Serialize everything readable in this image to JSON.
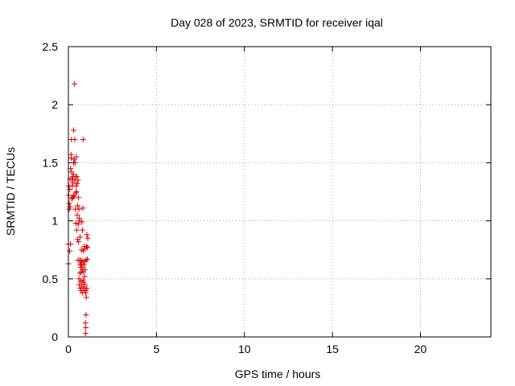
{
  "chart_data": {
    "type": "scatter",
    "title": "Day 028 of 2023, SRMTID for receiver iqal",
    "xlabel": "GPS time / hours",
    "ylabel": "SRMTID / TECUs",
    "xlim": [
      0,
      24
    ],
    "ylim": [
      0,
      2.5
    ],
    "xticks": [
      0,
      5,
      10,
      15,
      20
    ],
    "xtick_labels": [
      "0",
      "5",
      "10",
      "15",
      "20"
    ],
    "yticks": [
      0,
      0.5,
      1,
      1.5,
      2,
      2.5
    ],
    "ytick_labels": [
      "0",
      "0.5",
      "1",
      "1.5",
      "2",
      "2.5"
    ],
    "grid": true,
    "marker": "+",
    "series": [
      {
        "name": "SRMTID",
        "color": "#dd0000",
        "points": [
          [
            0.0,
            0.63
          ],
          [
            0.0,
            0.8
          ],
          [
            0.02,
            1.22
          ],
          [
            0.03,
            1.3
          ],
          [
            0.05,
            1.15
          ],
          [
            0.05,
            1.1
          ],
          [
            0.07,
            0.74
          ],
          [
            0.08,
            1.27
          ],
          [
            0.1,
            1.36
          ],
          [
            0.1,
            1.12
          ],
          [
            0.12,
            0.8
          ],
          [
            0.13,
            1.45
          ],
          [
            0.15,
            1.57
          ],
          [
            0.16,
            1.54
          ],
          [
            0.17,
            1.7
          ],
          [
            0.18,
            1.42
          ],
          [
            0.2,
            1.36
          ],
          [
            0.2,
            1.19
          ],
          [
            0.22,
            1.3
          ],
          [
            0.23,
            1.2
          ],
          [
            0.25,
            1.38
          ],
          [
            0.27,
            1.33
          ],
          [
            0.28,
            1.4
          ],
          [
            0.29,
            1.21
          ],
          [
            0.3,
            1.5
          ],
          [
            0.3,
            1.78
          ],
          [
            0.32,
            1.22
          ],
          [
            0.33,
            1.53
          ],
          [
            0.35,
            2.18
          ],
          [
            0.36,
            1.7
          ],
          [
            0.38,
            1.5
          ],
          [
            0.38,
            1.35
          ],
          [
            0.4,
            1.38
          ],
          [
            0.4,
            1.1
          ],
          [
            0.42,
            1.24
          ],
          [
            0.42,
            0.98
          ],
          [
            0.44,
            1.3
          ],
          [
            0.45,
            1.55
          ],
          [
            0.46,
            1.25
          ],
          [
            0.47,
            0.92
          ],
          [
            0.48,
            1.38
          ],
          [
            0.5,
            1.32
          ],
          [
            0.5,
            1.05
          ],
          [
            0.52,
            1.13
          ],
          [
            0.53,
            0.84
          ],
          [
            0.55,
            1.35
          ],
          [
            0.55,
            0.66
          ],
          [
            0.56,
            0.97
          ],
          [
            0.57,
            1.2
          ],
          [
            0.58,
            0.82
          ],
          [
            0.6,
            1.1
          ],
          [
            0.6,
            0.5
          ],
          [
            0.62,
            1.02
          ],
          [
            0.62,
            0.45
          ],
          [
            0.64,
            1.0
          ],
          [
            0.64,
            0.66
          ],
          [
            0.66,
            0.86
          ],
          [
            0.66,
            0.55
          ],
          [
            0.68,
            0.62
          ],
          [
            0.68,
            0.42
          ],
          [
            0.7,
            0.6
          ],
          [
            0.7,
            0.48
          ],
          [
            0.72,
            0.66
          ],
          [
            0.72,
            0.4
          ],
          [
            0.74,
            0.75
          ],
          [
            0.74,
            0.56
          ],
          [
            0.75,
            0.63
          ],
          [
            0.76,
            0.45
          ],
          [
            0.77,
            0.99
          ],
          [
            0.78,
            0.6
          ],
          [
            0.79,
            0.38
          ],
          [
            0.8,
            0.92
          ],
          [
            0.8,
            0.58
          ],
          [
            0.82,
            1.11
          ],
          [
            0.82,
            0.65
          ],
          [
            0.83,
            0.49
          ],
          [
            0.84,
            1.7
          ],
          [
            0.85,
            0.74
          ],
          [
            0.85,
            0.43
          ],
          [
            0.86,
            0.56
          ],
          [
            0.88,
            0.62
          ],
          [
            0.88,
            0.47
          ],
          [
            0.9,
            0.78
          ],
          [
            0.9,
            0.4
          ],
          [
            0.92,
            0.65
          ],
          [
            0.92,
            0.52
          ],
          [
            0.93,
            0.45
          ],
          [
            0.95,
            0.58
          ],
          [
            0.95,
            0.76
          ],
          [
            0.97,
            0.38
          ],
          [
            0.97,
            0.12
          ],
          [
            0.98,
            0.03
          ],
          [
            0.99,
            0.08
          ],
          [
            1.0,
            0.66
          ],
          [
            1.0,
            0.4
          ],
          [
            1.0,
            0.19
          ],
          [
            1.02,
            0.34
          ],
          [
            1.03,
            0.78
          ],
          [
            1.05,
            0.88
          ],
          [
            1.05,
            0.42
          ],
          [
            1.07,
            0.67
          ],
          [
            1.08,
            0.77
          ],
          [
            1.1,
            0.85
          ]
        ]
      }
    ]
  }
}
